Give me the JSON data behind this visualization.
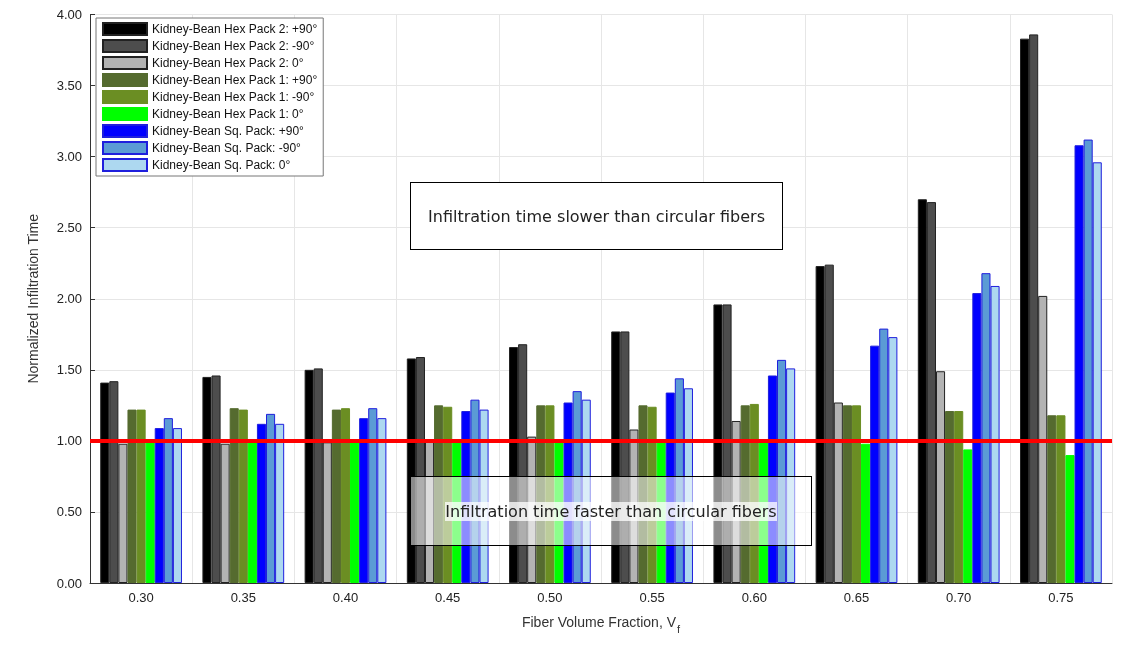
{
  "chart_data": {
    "type": "bar",
    "xlabel": "Fiber Volume Fraction, V$_{f}$",
    "ylabel": "Normalized Infiltration Time",
    "categories": [
      "0.30",
      "0.35",
      "0.40",
      "0.45",
      "0.50",
      "0.55",
      "0.60",
      "0.65",
      "0.70",
      "0.75"
    ],
    "series": [
      {
        "name": "Kidney-Bean Hex Pack 2: +90°",
        "color": "#000000",
        "values": [
          1.41,
          1.45,
          1.5,
          1.58,
          1.66,
          1.77,
          1.96,
          2.23,
          2.7,
          3.83
        ]
      },
      {
        "name": "Kidney-Bean Hex Pack 2: -90°",
        "color": "#4d4d4d",
        "values": [
          1.42,
          1.46,
          1.51,
          1.59,
          1.68,
          1.77,
          1.96,
          2.24,
          2.68,
          3.86
        ]
      },
      {
        "name": "Kidney-Bean Hex Pack 2: 0°",
        "color": "#b3b3b3",
        "values": [
          0.98,
          0.98,
          0.99,
          1.0,
          1.03,
          1.08,
          1.14,
          1.27,
          1.49,
          2.02
        ]
      },
      {
        "name": "Kidney-Bean Hex Pack 1: +90°",
        "color": "#556b2f",
        "values": [
          1.22,
          1.23,
          1.22,
          1.25,
          1.25,
          1.25,
          1.25,
          1.25,
          1.21,
          1.18
        ]
      },
      {
        "name": "Kidney-Bean Hex Pack 1: -90°",
        "color": "#6b8e23",
        "values": [
          1.22,
          1.22,
          1.23,
          1.24,
          1.25,
          1.24,
          1.26,
          1.25,
          1.21,
          1.18
        ]
      },
      {
        "name": "Kidney-Bean Hex Pack 1: 0°",
        "color": "#00ff00",
        "values": [
          1.0,
          1.0,
          1.0,
          1.0,
          1.0,
          1.0,
          1.0,
          0.98,
          0.94,
          0.9
        ]
      },
      {
        "name": "Kidney-Bean Sq. Pack: +90°",
        "color": "#0000ff",
        "values": [
          1.09,
          1.12,
          1.16,
          1.21,
          1.27,
          1.34,
          1.46,
          1.67,
          2.04,
          3.08
        ]
      },
      {
        "name": "Kidney-Bean Sq. Pack: -90°",
        "color": "#5b9bd5",
        "values": [
          1.16,
          1.19,
          1.23,
          1.29,
          1.35,
          1.44,
          1.57,
          1.79,
          2.18,
          3.12
        ]
      },
      {
        "name": "Kidney-Bean Sq. Pack: 0°",
        "color": "#add8f0",
        "values": [
          1.09,
          1.12,
          1.16,
          1.22,
          1.29,
          1.37,
          1.51,
          1.73,
          2.09,
          2.96
        ]
      }
    ],
    "ylim": [
      0,
      4
    ],
    "yticks": [
      {
        "value": 0,
        "label": "0.00"
      },
      {
        "value": 0.5,
        "label": "0.50"
      },
      {
        "value": 1,
        "label": "1.00"
      },
      {
        "value": 1.5,
        "label": "1.50"
      },
      {
        "value": 2,
        "label": "2.00"
      },
      {
        "value": 2.5,
        "label": "2.50"
      },
      {
        "value": 3,
        "label": "3.00"
      },
      {
        "value": 3.5,
        "label": "3.50"
      },
      {
        "value": 4,
        "label": "4.00"
      }
    ],
    "ref_lines": [
      {
        "axis": "y",
        "value": 1,
        "color": "#ff0000"
      }
    ],
    "annotations": [
      "Infiltration time slower than circular fibers",
      "Infiltration time faster than circular fibers"
    ],
    "grid": true,
    "legend": "top left"
  }
}
